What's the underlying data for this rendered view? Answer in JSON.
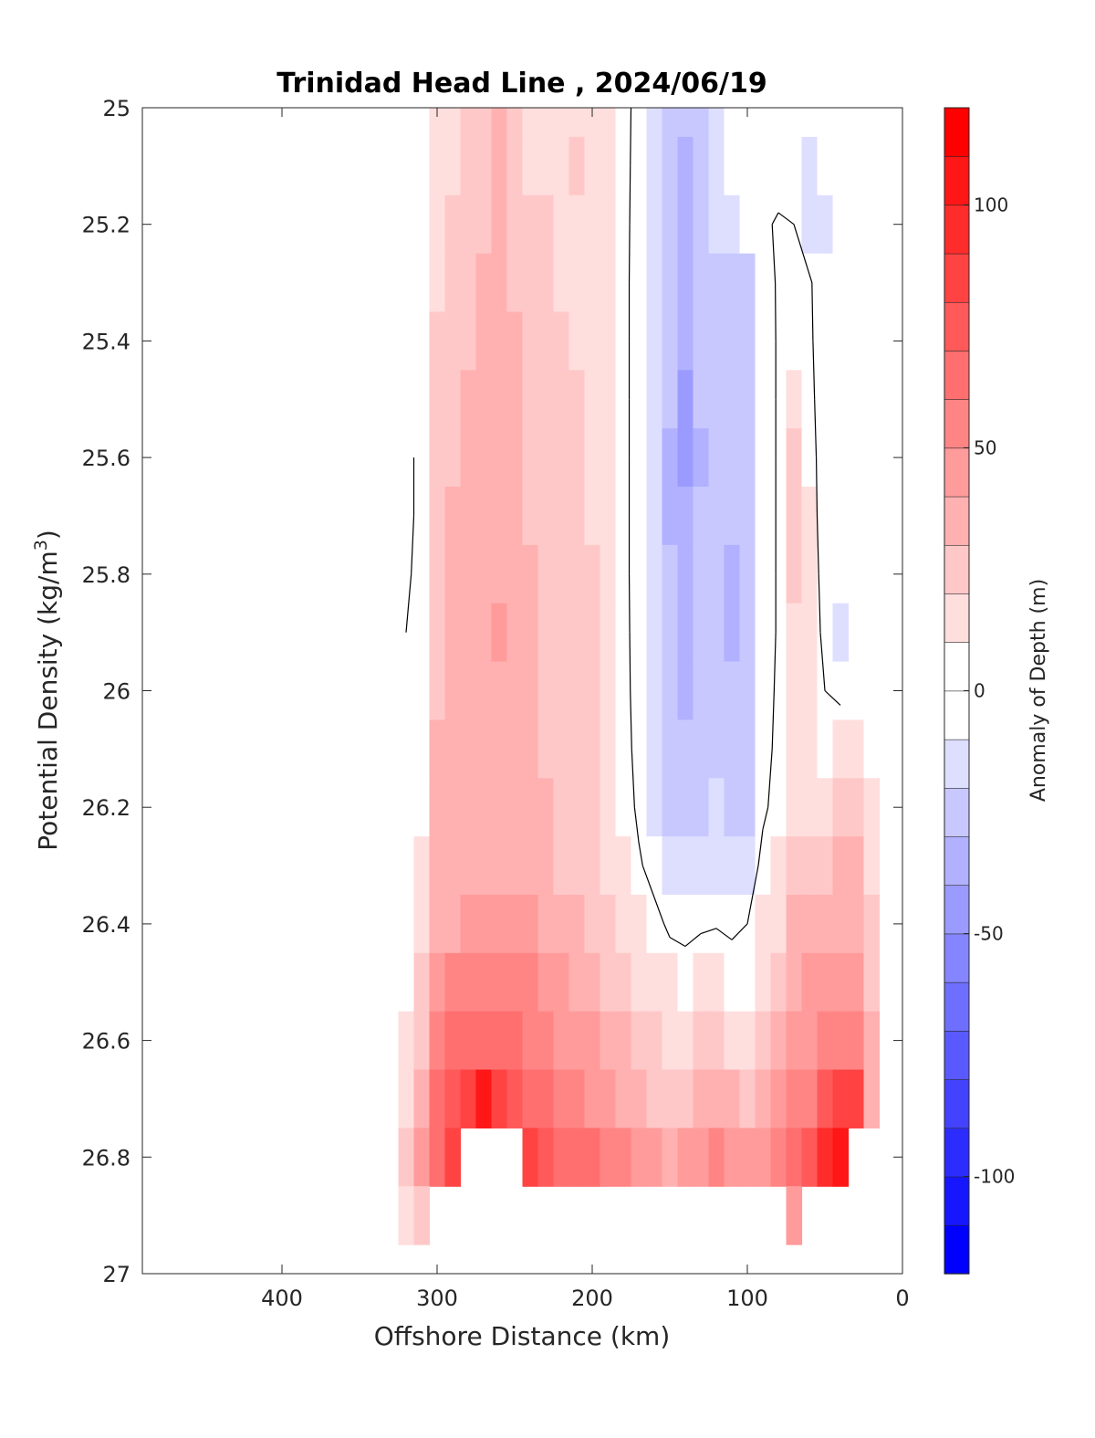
{
  "chart_data": {
    "type": "filled-contour",
    "title": "Trinidad Head Line , 2024/06/19",
    "xlabel": "Offshore Distance (km)",
    "ylabel": "Potential Density (kg/m",
    "ylabel_sup": "3",
    "ylabel_end": ")",
    "xlim": [
      490,
      0
    ],
    "ylim": [
      25,
      27
    ],
    "x_reversed": true,
    "y_reversed": true,
    "x_ticks": [
      400,
      300,
      200,
      100,
      0
    ],
    "y_ticks": [
      25,
      25.2,
      25.4,
      25.6,
      25.8,
      26,
      26.2,
      26.4,
      26.6,
      26.8,
      27
    ],
    "x_tick_labels": [
      "400",
      "300",
      "200",
      "100",
      "0"
    ],
    "y_tick_labels": [
      "25",
      "25.2",
      "25.4",
      "25.6",
      "25.8",
      "26",
      "26.2",
      "26.4",
      "26.6",
      "26.8",
      "27"
    ],
    "colorbar": {
      "label": "Anomaly of Depth (m)",
      "range": [
        -120,
        120
      ],
      "step": 10,
      "ticks": [
        100,
        50,
        0,
        -50,
        -100
      ],
      "tick_labels": [
        "100",
        "50",
        "0",
        "-50",
        "-100"
      ],
      "colormap": "blue-white-red"
    },
    "contour_line_level": 0,
    "grid": false,
    "x": [
      320,
      310,
      300,
      290,
      280,
      270,
      260,
      250,
      240,
      230,
      220,
      210,
      200,
      190,
      180,
      170,
      160,
      150,
      140,
      130,
      120,
      110,
      100,
      90,
      80,
      70,
      60,
      50,
      40,
      30,
      20
    ],
    "y": [
      25.0,
      25.1,
      25.2,
      25.3,
      25.4,
      25.5,
      25.6,
      25.7,
      25.8,
      25.9,
      26.0,
      26.1,
      26.2,
      26.3,
      26.4,
      26.5,
      26.6,
      26.7,
      26.8,
      26.9
    ],
    "anomaly_m": [
      [
        null,
        0,
        12,
        17,
        20,
        22,
        30,
        20,
        17,
        17,
        15,
        15,
        12,
        10,
        5,
        -5,
        -12,
        -25,
        -30,
        -25,
        -15,
        -10,
        -8,
        -5,
        -5,
        -8,
        -10,
        -5,
        -5,
        null,
        null
      ],
      [
        null,
        0,
        14,
        18,
        22,
        25,
        32,
        23,
        19,
        19,
        17,
        25,
        14,
        12,
        5,
        -6,
        -14,
        -27,
        -32,
        -27,
        -18,
        -8,
        -5,
        -5,
        -8,
        -10,
        -12,
        -6,
        -5,
        null,
        null
      ],
      [
        null,
        0,
        16,
        20,
        24,
        28,
        34,
        26,
        21,
        20,
        18,
        17,
        15,
        12,
        5,
        -7,
        -15,
        -28,
        -35,
        -28,
        -20,
        -12,
        -8,
        -3,
        2,
        0,
        -12,
        -12,
        -5,
        null,
        null
      ],
      [
        null,
        0,
        18,
        22,
        26,
        30,
        36,
        28,
        23,
        21,
        19,
        18,
        16,
        13,
        5,
        -8,
        -16,
        -29,
        -38,
        -29,
        -24,
        -25,
        -22,
        -8,
        2,
        4,
        2,
        -10,
        -5,
        null,
        null
      ],
      [
        null,
        0,
        20,
        24,
        28,
        32,
        36,
        30,
        25,
        22,
        20,
        19,
        17,
        14,
        5,
        -8,
        -17,
        -30,
        -40,
        -30,
        -26,
        -24,
        -22,
        -10,
        2,
        8,
        3,
        -10,
        -5,
        null,
        null
      ],
      [
        null,
        0,
        22,
        26,
        30,
        34,
        36,
        32,
        27,
        24,
        21,
        20,
        18,
        15,
        5,
        -8,
        -18,
        -30,
        -42,
        -30,
        -26,
        -24,
        -22,
        -10,
        2,
        15,
        5,
        -10,
        -5,
        null,
        null
      ],
      [
        -2,
        2,
        24,
        28,
        32,
        34,
        36,
        33,
        28,
        25,
        22,
        21,
        19,
        15,
        5,
        -8,
        -18,
        -31,
        -44,
        -31,
        -26,
        -24,
        -22,
        -10,
        2,
        20,
        8,
        -10,
        -5,
        null,
        null
      ],
      [
        -3,
        3,
        26,
        30,
        34,
        34,
        36,
        34,
        29,
        26,
        23,
        22,
        19,
        15,
        5,
        -8,
        -18,
        -31,
        -40,
        -30,
        -26,
        -30,
        -28,
        -10,
        2,
        22,
        10,
        -10,
        -8,
        null,
        null
      ],
      [
        -2,
        4,
        27,
        31,
        34,
        35,
        37,
        34,
        30,
        27,
        24,
        23,
        20,
        15,
        5,
        -8,
        -18,
        -30,
        -38,
        -29,
        -26,
        -32,
        -30,
        -10,
        2,
        20,
        12,
        -8,
        -10,
        null,
        null
      ],
      [
        0,
        5,
        28,
        32,
        34,
        36,
        42,
        35,
        31,
        28,
        25,
        23,
        20,
        15,
        5,
        -7,
        -17,
        -29,
        -36,
        -28,
        -26,
        -32,
        -30,
        -10,
        2,
        18,
        12,
        -5,
        -12,
        null,
        null
      ],
      [
        0,
        6,
        29,
        33,
        35,
        36,
        38,
        35,
        31,
        28,
        25,
        23,
        20,
        15,
        5,
        -6,
        -16,
        -27,
        -33,
        -26,
        -25,
        -30,
        -28,
        -8,
        3,
        15,
        12,
        0,
        -5,
        null,
        null
      ],
      [
        0,
        7,
        30,
        34,
        35,
        36,
        37,
        36,
        32,
        29,
        26,
        24,
        21,
        16,
        6,
        -5,
        -15,
        -25,
        -30,
        -24,
        -22,
        -28,
        -26,
        -6,
        4,
        15,
        15,
        8,
        15,
        15,
        5
      ],
      [
        0,
        8,
        31,
        34,
        36,
        36,
        37,
        36,
        33,
        30,
        27,
        25,
        22,
        17,
        8,
        -3,
        -12,
        -22,
        -27,
        -22,
        -20,
        -25,
        -22,
        -3,
        6,
        18,
        18,
        18,
        25,
        25,
        15
      ],
      [
        0,
        10,
        32,
        35,
        37,
        37,
        38,
        38,
        35,
        32,
        29,
        27,
        24,
        19,
        12,
        2,
        -6,
        -15,
        -18,
        -15,
        -12,
        -16,
        -12,
        5,
        12,
        25,
        25,
        25,
        32,
        32,
        18
      ],
      [
        0,
        14,
        34,
        38,
        41,
        41,
        42,
        42,
        40,
        36,
        33,
        31,
        28,
        23,
        18,
        10,
        5,
        -3,
        -5,
        -2,
        -1,
        -3,
        0,
        10,
        18,
        32,
        32,
        35,
        38,
        38,
        22
      ],
      [
        5,
        20,
        40,
        50,
        55,
        55,
        55,
        53,
        50,
        45,
        40,
        37,
        34,
        29,
        24,
        18,
        14,
        10,
        8,
        10,
        12,
        8,
        5,
        15,
        24,
        38,
        40,
        42,
        44,
        44,
        25
      ],
      [
        12,
        28,
        52,
        64,
        68,
        68,
        64,
        62,
        58,
        53,
        48,
        44,
        40,
        35,
        30,
        25,
        20,
        18,
        17,
        20,
        22,
        18,
        16,
        22,
        30,
        44,
        48,
        52,
        55,
        55,
        30
      ],
      [
        18,
        36,
        62,
        78,
        88,
        104,
        82,
        72,
        66,
        60,
        55,
        50,
        46,
        40,
        35,
        30,
        27,
        26,
        28,
        32,
        36,
        30,
        28,
        30,
        45,
        50,
        58,
        70,
        85,
        85,
        35
      ],
      [
        22,
        40,
        68,
        88,
        null,
        null,
        null,
        null,
        85,
        75,
        68,
        64,
        60,
        56,
        50,
        45,
        40,
        38,
        42,
        48,
        50,
        46,
        44,
        48,
        55,
        62,
        75,
        90,
        100,
        null,
        null
      ],
      [
        18,
        25,
        null,
        null,
        null,
        null,
        null,
        null,
        null,
        null,
        null,
        null,
        null,
        null,
        null,
        null,
        null,
        null,
        null,
        null,
        null,
        null,
        null,
        null,
        null,
        45,
        null,
        null,
        null,
        null,
        null
      ]
    ]
  }
}
